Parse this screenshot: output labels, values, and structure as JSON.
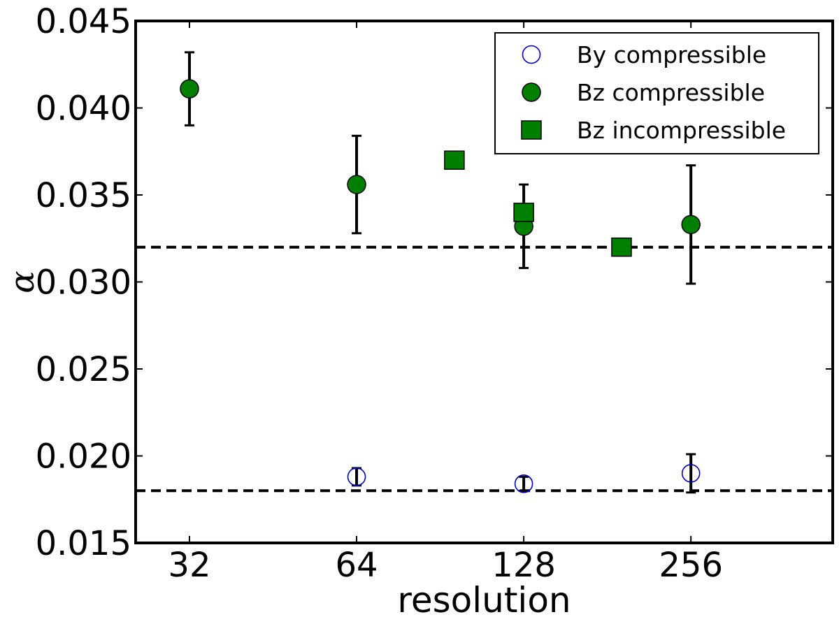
{
  "chart_data": {
    "type": "scatter",
    "title": "",
    "xlabel": "resolution",
    "ylabel": "α",
    "x_scale": "log2",
    "xlim": [
      25.6,
      460.9
    ],
    "ylim": [
      0.015,
      0.045
    ],
    "x_ticks": [
      32,
      64,
      128,
      256
    ],
    "x_tick_labels": [
      "32",
      "64",
      "128",
      "256"
    ],
    "y_ticks": [
      0.015,
      0.02,
      0.025,
      0.03,
      0.035,
      0.04,
      0.045
    ],
    "y_tick_labels": [
      "0.015",
      "0.020",
      "0.025",
      "0.030",
      "0.035",
      "0.040",
      "0.045"
    ],
    "grid": false,
    "legend_position": "top-right",
    "reference_lines": [
      {
        "y": 0.032,
        "style": "dashed",
        "color": "#000000"
      },
      {
        "y": 0.018,
        "style": "dashed",
        "color": "#000000"
      }
    ],
    "series": [
      {
        "name": "By compressible",
        "marker": "open-circle",
        "color": "#0000cc",
        "points": [
          {
            "x": 64,
            "y": 0.0188,
            "err": 0.0005
          },
          {
            "x": 128,
            "y": 0.0184,
            "err": 0.0004
          },
          {
            "x": 256,
            "y": 0.019,
            "err": 0.0011
          }
        ]
      },
      {
        "name": "Bz compressible",
        "marker": "filled-circle",
        "color": "#007f00",
        "points": [
          {
            "x": 32,
            "y": 0.0411,
            "err": 0.0021
          },
          {
            "x": 64,
            "y": 0.0356,
            "err": 0.0028
          },
          {
            "x": 128,
            "y": 0.0332,
            "err": 0.0024
          },
          {
            "x": 256,
            "y": 0.0333,
            "err": 0.0034
          }
        ]
      },
      {
        "name": "Bz incompressible",
        "marker": "filled-square",
        "color": "#007f00",
        "points": [
          {
            "x": 96,
            "y": 0.037
          },
          {
            "x": 128,
            "y": 0.034
          },
          {
            "x": 192,
            "y": 0.032
          }
        ]
      }
    ]
  }
}
